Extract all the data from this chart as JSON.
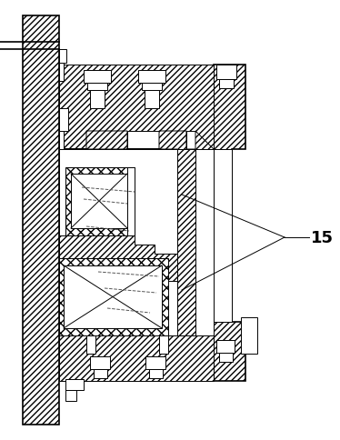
{
  "bg_color": "#ffffff",
  "line_color": "#000000",
  "fig_width": 3.74,
  "fig_height": 4.85,
  "dpi": 100,
  "label_15": "15",
  "label_fontsize": 13,
  "label_fontweight": "bold"
}
